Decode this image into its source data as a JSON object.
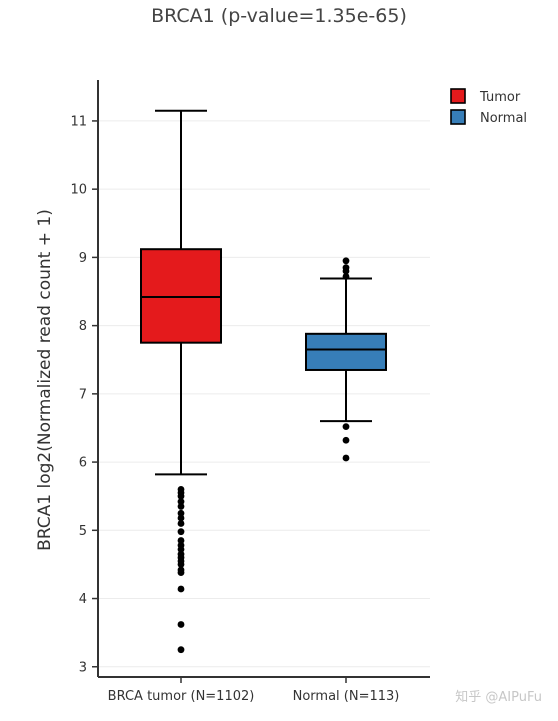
{
  "watermark": "知乎 @AIPuFu",
  "chart_data": {
    "type": "box",
    "title": "BRCA1 (p-value=1.35e-65)",
    "xlabel": "",
    "ylabel": "BRCA1 log2(Normalized read count + 1)",
    "ylim": [
      2.85,
      11.6
    ],
    "yticks": [
      3,
      4,
      5,
      6,
      7,
      8,
      9,
      10,
      11
    ],
    "grid": true,
    "legend_position": "top-right",
    "categories": [
      "BRCA tumor (N=1102)",
      "Normal (N=113)"
    ],
    "series": [
      {
        "name": "Tumor",
        "category": "BRCA tumor (N=1102)",
        "color": "#e41a1c",
        "whisker_low": 5.82,
        "q1": 7.75,
        "median": 8.42,
        "q3": 9.12,
        "whisker_high": 11.15,
        "outliers": [
          5.6,
          5.55,
          5.5,
          5.42,
          5.35,
          5.25,
          5.18,
          5.1,
          4.98,
          4.85,
          4.78,
          4.72,
          4.65,
          4.6,
          4.55,
          4.5,
          4.42,
          4.38,
          4.14,
          3.62,
          3.25
        ]
      },
      {
        "name": "Normal",
        "category": "Normal (N=113)",
        "color": "#377eb8",
        "whisker_low": 6.6,
        "q1": 7.35,
        "median": 7.65,
        "q3": 7.88,
        "whisker_high": 8.69,
        "outliers": [
          8.95,
          8.85,
          8.8,
          8.72,
          6.52,
          6.32,
          6.06
        ]
      }
    ]
  }
}
